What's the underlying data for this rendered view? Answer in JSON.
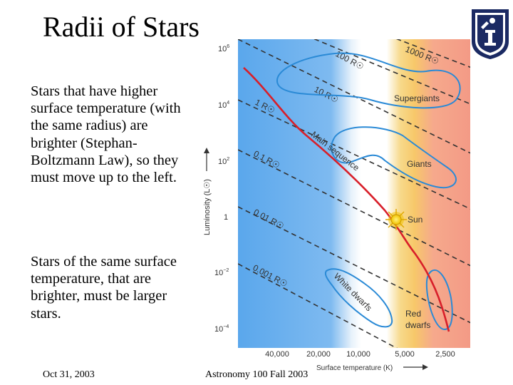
{
  "slide": {
    "title": "Radii of Stars",
    "paragraph_1": "Stars that have higher surface temperature (with the same radius) are brighter (Stephan-Boltzmann Law), so they must move up to the left.",
    "paragraph_2": "Stars of the same surface temperature, that are brighter, must be larger stars.",
    "footer_date": "Oct 31, 2003",
    "footer_course": "Astronomy 100 Fall 2003",
    "logo_icon": "university-seal-icon"
  },
  "diagram": {
    "y_axis_label": "Luminosity (L☉)",
    "x_axis_label": "Surface temperature (K)",
    "y_ticks": [
      {
        "base": "10",
        "exp": "6"
      },
      {
        "base": "10",
        "exp": "4"
      },
      {
        "base": "10",
        "exp": "2"
      },
      {
        "base": "1",
        "exp": ""
      },
      {
        "base": "10",
        "exp": "−2"
      },
      {
        "base": "10",
        "exp": "−4"
      }
    ],
    "x_ticks": [
      "40,000",
      "20,000",
      "10,000",
      "5,000",
      "2,500"
    ],
    "radius_lines": [
      "1000 R☉",
      "100 R☉",
      "10 R☉",
      "1 R☉",
      "0.1 R☉",
      "0.01 R☉",
      "0.001 R☉"
    ],
    "regions": {
      "supergiants": "Supergiants",
      "giants": "Giants",
      "main_sequence": "Main sequence",
      "sun": "Sun",
      "white_dwarfs": "White dwarfs",
      "red_dwarfs_1": "Red",
      "red_dwarfs_2": "dwarfs"
    },
    "colors": {
      "hot": "#5aa7ec",
      "mid": "#ffffff",
      "warm": "#f7c86a",
      "cool": "#f39a86",
      "outline": "#2a8ad6",
      "main_sequence": "#d81f2a",
      "dashed": "#333333"
    }
  }
}
